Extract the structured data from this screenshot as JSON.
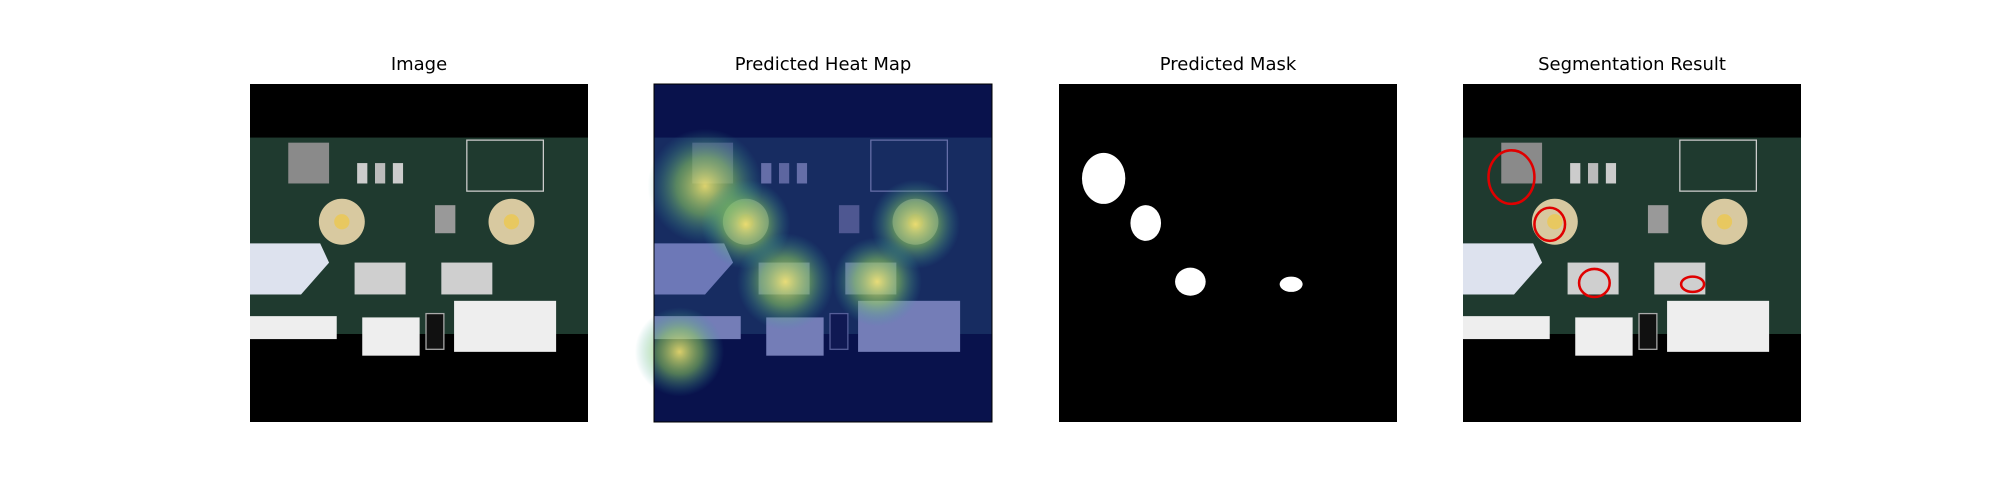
{
  "panels": [
    {
      "title": "Image"
    },
    {
      "title": "Predicted Heat Map"
    },
    {
      "title": "Predicted Mask"
    },
    {
      "title": "Segmentation Result"
    }
  ]
}
